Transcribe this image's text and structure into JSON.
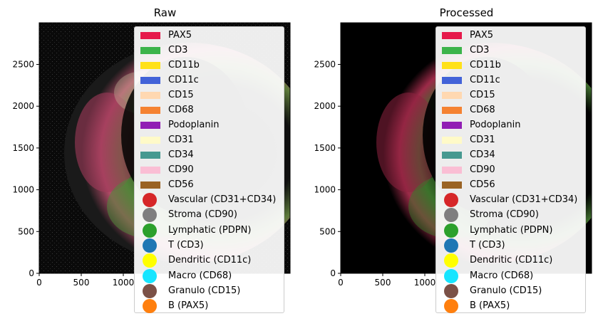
{
  "panels": [
    {
      "id": "raw",
      "title": "Raw",
      "x_ticks": [
        "0",
        "500",
        "1000"
      ],
      "y_ticks": [
        "0",
        "500",
        "1000",
        "1500",
        "2000",
        "2500"
      ]
    },
    {
      "id": "processed",
      "title": "Processed",
      "x_ticks": [
        "0",
        "500",
        "1000"
      ],
      "y_ticks": [
        "0",
        "500",
        "1000",
        "1500",
        "2000",
        "2500"
      ]
    }
  ],
  "legend": {
    "markers": [
      {
        "label": "PAX5",
        "color": "#e6194b"
      },
      {
        "label": "CD3",
        "color": "#3cb44b"
      },
      {
        "label": "CD11b",
        "color": "#ffe119"
      },
      {
        "label": "CD11c",
        "color": "#4363d8"
      },
      {
        "label": "CD15",
        "color": "#ffd8b1"
      },
      {
        "label": "CD68",
        "color": "#f58231"
      },
      {
        "label": "Podoplanin",
        "color": "#911eb4"
      },
      {
        "label": "CD31",
        "color": "#fffac8"
      },
      {
        "label": "CD34",
        "color": "#469990"
      },
      {
        "label": "CD90",
        "color": "#fabed4"
      },
      {
        "label": "CD56",
        "color": "#9a6324"
      }
    ],
    "cell_types": [
      {
        "label": "Vascular (CD31+CD34)",
        "color": "#d62728"
      },
      {
        "label": "Stroma (CD90)",
        "color": "#7f7f7f"
      },
      {
        "label": "Lymphatic (PDPN)",
        "color": "#2ca02c"
      },
      {
        "label": "T (CD3)",
        "color": "#1f77b4"
      },
      {
        "label": "Dendritic (CD11c)",
        "color": "#ffff00"
      },
      {
        "label": "Macro (CD68)",
        "color": "#17e5ff"
      },
      {
        "label": "Granulo (CD15)",
        "color": "#7b5147"
      },
      {
        "label": "B (PAX5)",
        "color": "#ff7f0e"
      }
    ]
  }
}
